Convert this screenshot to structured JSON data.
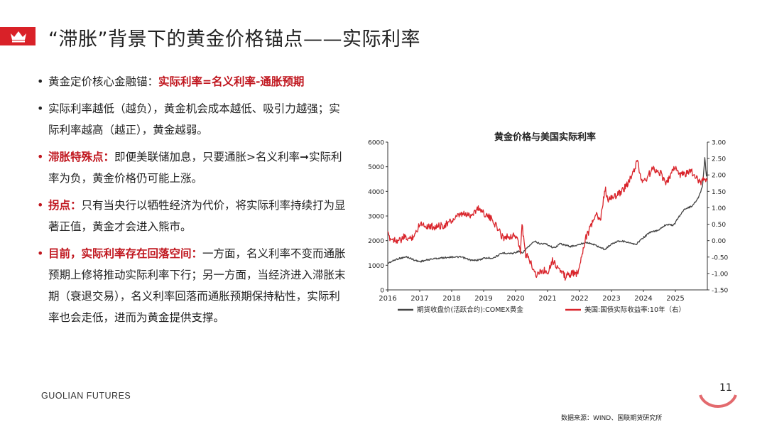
{
  "header": {
    "title": "“滞胀”背景下的黄金价格锚点——实际利率",
    "logo_icon": "crown-icon",
    "accent": "#d92128"
  },
  "bullets": [
    {
      "dot": "black",
      "prefix": "黄金定价核心金融锚：",
      "highlight": "实际利率=名义利率-通胀预期",
      "text": ""
    },
    {
      "dot": "black",
      "prefix": "",
      "highlight": "",
      "text": "实际利率越低（越负），黄金机会成本越低、吸引力越强；实际利率越高（越正），黄金越弱。"
    },
    {
      "dot": "red",
      "prefix": "",
      "highlight": "滞胀特殊点：",
      "text": "即便美联储加息，只要通胀>名义利率➞实际利率为负，黄金价格仍可能上涨。"
    },
    {
      "dot": "red",
      "prefix": "",
      "highlight": "拐点：",
      "text": "只有当央行以牺牲经济为代价，将实际利率持续打为显著正值，黄金才会进入熊市。"
    },
    {
      "dot": "red",
      "prefix": "",
      "highlight": "目前，实际利率存在回落空间：",
      "text": "一方面，名义利率不变而通胀预期上修将推动实际利率下行；另一方面，当经济进入滞胀末期（衰退交易），名义利率回落而通胀预期保持粘性，实际利率也会走低，进而为黄金提供支撑。"
    }
  ],
  "footer": {
    "brand": "GUOLIAN FUTURES",
    "page_number": "11",
    "source": "数据来源：WIND、国联期货研究所"
  },
  "chart_data": {
    "type": "line",
    "title": "黄金价格与美国实际利率",
    "x_ticks": [
      "2016",
      "2017",
      "2018",
      "2019",
      "2020",
      "2021",
      "2022",
      "2023",
      "2024",
      "2025"
    ],
    "x_range": [
      2016.0,
      2026.0
    ],
    "y_left": {
      "min": 0,
      "max": 6000,
      "ticks": [
        "0",
        "1000",
        "2000",
        "3000",
        "4000",
        "5000",
        "6000"
      ]
    },
    "y_right": {
      "min": -1.5,
      "max": 3.0,
      "ticks": [
        "3.00",
        "2.50",
        "2.00",
        "1.50",
        "1.00",
        "0.50",
        "0.00",
        "-0.50",
        "-1.00",
        "-1.50"
      ]
    },
    "series": [
      {
        "name": "期货收盘价(活跃合约):COMEX黄金",
        "axis": "left",
        "color": "#444444",
        "points": [
          [
            2016.0,
            1080
          ],
          [
            2016.3,
            1260
          ],
          [
            2016.6,
            1340
          ],
          [
            2016.9,
            1180
          ],
          [
            2017.0,
            1150
          ],
          [
            2017.4,
            1260
          ],
          [
            2017.7,
            1300
          ],
          [
            2018.0,
            1340
          ],
          [
            2018.3,
            1330
          ],
          [
            2018.65,
            1190
          ],
          [
            2018.9,
            1230
          ],
          [
            2019.0,
            1290
          ],
          [
            2019.3,
            1300
          ],
          [
            2019.6,
            1500
          ],
          [
            2019.9,
            1480
          ],
          [
            2020.1,
            1570
          ],
          [
            2020.22,
            1480
          ],
          [
            2020.35,
            1700
          ],
          [
            2020.6,
            1970
          ],
          [
            2020.75,
            1880
          ],
          [
            2020.95,
            1870
          ],
          [
            2021.2,
            1700
          ],
          [
            2021.4,
            1880
          ],
          [
            2021.7,
            1760
          ],
          [
            2021.95,
            1820
          ],
          [
            2022.2,
            1940
          ],
          [
            2022.45,
            1840
          ],
          [
            2022.8,
            1640
          ],
          [
            2022.95,
            1820
          ],
          [
            2023.2,
            1990
          ],
          [
            2023.4,
            1970
          ],
          [
            2023.75,
            1830
          ],
          [
            2023.95,
            2070
          ],
          [
            2024.2,
            2330
          ],
          [
            2024.45,
            2420
          ],
          [
            2024.7,
            2650
          ],
          [
            2024.95,
            2630
          ],
          [
            2025.1,
            2950
          ],
          [
            2025.3,
            3300
          ],
          [
            2025.5,
            3380
          ],
          [
            2025.7,
            3700
          ],
          [
            2025.85,
            4200
          ],
          [
            2025.92,
            5350
          ],
          [
            2025.97,
            4600
          ],
          [
            2026.0,
            4850
          ]
        ]
      },
      {
        "name": "美国:国债实际收益率:10年（右）",
        "axis": "right",
        "color": "#d9242b",
        "points": [
          [
            2016.0,
            0.18
          ],
          [
            2016.1,
            0.05
          ],
          [
            2016.4,
            0.0
          ],
          [
            2016.5,
            0.1
          ],
          [
            2016.7,
            0.05
          ],
          [
            2016.9,
            0.25
          ],
          [
            2017.0,
            0.55
          ],
          [
            2017.2,
            0.45
          ],
          [
            2017.5,
            0.42
          ],
          [
            2017.8,
            0.48
          ],
          [
            2018.0,
            0.6
          ],
          [
            2018.3,
            0.8
          ],
          [
            2018.6,
            0.78
          ],
          [
            2018.85,
            1.0
          ],
          [
            2019.0,
            0.85
          ],
          [
            2019.3,
            0.6
          ],
          [
            2019.6,
            0.1
          ],
          [
            2019.9,
            0.15
          ],
          [
            2020.05,
            0.12
          ],
          [
            2020.15,
            -0.4
          ],
          [
            2020.2,
            0.55
          ],
          [
            2020.3,
            -0.4
          ],
          [
            2020.5,
            -0.7
          ],
          [
            2020.65,
            -1.05
          ],
          [
            2020.85,
            -0.9
          ],
          [
            2021.0,
            -0.95
          ],
          [
            2021.15,
            -0.6
          ],
          [
            2021.35,
            -0.85
          ],
          [
            2021.55,
            -1.1
          ],
          [
            2021.75,
            -1.0
          ],
          [
            2021.95,
            -1.0
          ],
          [
            2022.05,
            -0.5
          ],
          [
            2022.2,
            0.1
          ],
          [
            2022.35,
            0.4
          ],
          [
            2022.5,
            0.8
          ],
          [
            2022.65,
            0.6
          ],
          [
            2022.8,
            1.6
          ],
          [
            2022.9,
            1.2
          ],
          [
            2023.0,
            1.3
          ],
          [
            2023.2,
            1.4
          ],
          [
            2023.4,
            1.6
          ],
          [
            2023.55,
            1.8
          ],
          [
            2023.7,
            2.1
          ],
          [
            2023.8,
            2.45
          ],
          [
            2023.95,
            1.8
          ],
          [
            2024.1,
            1.9
          ],
          [
            2024.3,
            2.2
          ],
          [
            2024.55,
            2.05
          ],
          [
            2024.7,
            1.7
          ],
          [
            2024.85,
            2.0
          ],
          [
            2025.0,
            2.25
          ],
          [
            2025.15,
            2.0
          ],
          [
            2025.35,
            2.05
          ],
          [
            2025.5,
            2.1
          ],
          [
            2025.65,
            1.9
          ],
          [
            2025.8,
            1.8
          ],
          [
            2025.9,
            1.9
          ],
          [
            2026.0,
            1.82
          ]
        ]
      }
    ],
    "grid": false,
    "legend_position": "bottom"
  }
}
